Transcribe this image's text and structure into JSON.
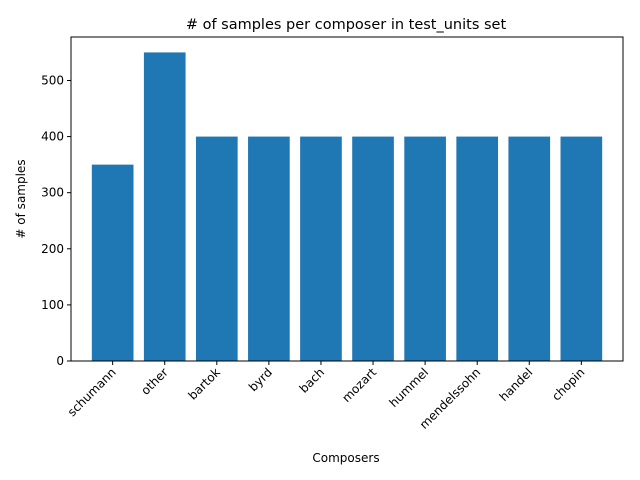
{
  "chart_data": {
    "type": "bar",
    "title": "# of samples per composer in test_units set",
    "xlabel": "Composers",
    "ylabel": "# of samples",
    "categories": [
      "schumann",
      "other",
      "bartok",
      "byrd",
      "bach",
      "mozart",
      "hummel",
      "mendelssohn",
      "handel",
      "chopin"
    ],
    "values": [
      350,
      550,
      400,
      400,
      400,
      400,
      400,
      400,
      400,
      400
    ],
    "ylim": [
      0,
      577.5
    ],
    "yticks": [
      0,
      100,
      200,
      300,
      400,
      500
    ],
    "grid": false,
    "legend": "none",
    "xtick_rotation": 45,
    "bar_color": "#1f77b4"
  }
}
